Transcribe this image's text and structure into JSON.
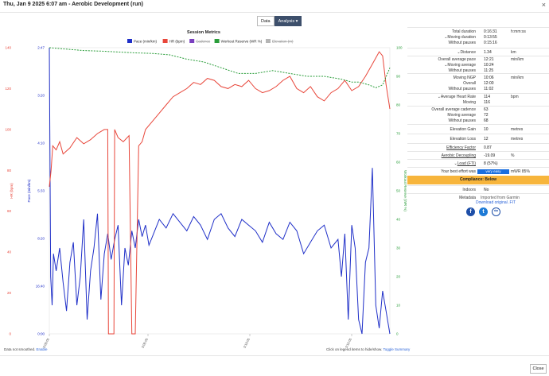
{
  "window": {
    "title": "Thu, Jan 9 2025 6:07 am - Aerobic Development (run)",
    "close_symbol": "×"
  },
  "tabs": [
    {
      "label": "Data"
    },
    {
      "label": "Analysis ▾"
    }
  ],
  "chart_data": {
    "type": "line",
    "title": "Session Metrics",
    "legend": [
      {
        "name": "Pace (min/km)",
        "color": "#1f2fc8",
        "active": true
      },
      {
        "name": "HR (bpm)",
        "color": "#e8463a",
        "active": true
      },
      {
        "name": "Cadence",
        "color": "#7a3fbf",
        "active": false
      },
      {
        "name": "Workout Reserve (WR %)",
        "color": "#2a9d3a",
        "active": true
      },
      {
        "name": "Elevation (m)",
        "color": "#b5b5b5",
        "active": false
      }
    ],
    "x_ticks": [
      "0:00:01",
      "0:05:01",
      "0:10:01",
      "0:15:01"
    ],
    "x_range": [
      0,
      991
    ],
    "left_axis_hr": {
      "label": "HR (bpm)",
      "ticks": [
        "140",
        "120",
        "100",
        "80",
        "60",
        "40",
        "20",
        "0"
      ],
      "range": [
        0,
        140
      ]
    },
    "left_axis_pace": {
      "label": "Pace (min/km)",
      "ticks": [
        "2:47",
        "3:20",
        "4:10",
        "5:33",
        "8:20",
        "16:40",
        "0:00"
      ]
    },
    "right_axis_wr": {
      "label": "Workout Reserve (WR %)",
      "ticks": [
        "100",
        "90",
        "80",
        "70",
        "60",
        "50",
        "40",
        "30",
        "20",
        "10",
        "0"
      ],
      "range": [
        0,
        100
      ]
    },
    "series": [
      {
        "name": "HR (bpm)",
        "x": [
          0,
          5,
          10,
          20,
          30,
          40,
          60,
          80,
          100,
          120,
          140,
          160,
          170,
          172,
          188,
          190,
          200,
          215,
          232,
          240,
          250,
          260,
          270,
          280,
          300,
          320,
          340,
          360,
          380,
          400,
          420,
          440,
          460,
          480,
          500,
          520,
          540,
          560,
          580,
          600,
          620,
          640,
          660,
          680,
          700,
          720,
          740,
          760,
          780,
          800,
          820,
          840,
          860,
          880,
          900,
          920,
          940,
          960,
          970,
          980,
          991
        ],
        "values": [
          72,
          80,
          92,
          90,
          94,
          88,
          91,
          96,
          93,
          95,
          98,
          100,
          100,
          0,
          0,
          100,
          96,
          94,
          97,
          0,
          0,
          92,
          94,
          100,
          104,
          108,
          112,
          116,
          118,
          120,
          123,
          122,
          125,
          124,
          121,
          120,
          122,
          121,
          124,
          120,
          118,
          119,
          121,
          124,
          126,
          120,
          118,
          121,
          116,
          114,
          118,
          120,
          124,
          119,
          121,
          126,
          132,
          138,
          136,
          122,
          110
        ]
      },
      {
        "name": "Workout Reserve (WR %)",
        "x": [
          0,
          50,
          100,
          150,
          200,
          250,
          300,
          350,
          400,
          450,
          500,
          550,
          600,
          650,
          700,
          750,
          800,
          850,
          880,
          900,
          930,
          950,
          970,
          991
        ],
        "values": [
          100,
          99.5,
          99,
          98.8,
          98.5,
          98.2,
          98,
          97.5,
          96,
          95,
          93,
          91,
          91,
          92,
          91,
          90,
          90,
          89,
          88,
          88,
          87,
          86,
          87,
          93
        ]
      },
      {
        "name": "Pace (min/km)",
        "note": "plotted as speed fraction of axis height (0 = stopped, 1 = 2:47 min/km)",
        "x": [
          0,
          4,
          8,
          12,
          20,
          30,
          40,
          50,
          60,
          70,
          80,
          90,
          100,
          110,
          120,
          130,
          140,
          150,
          160,
          170,
          180,
          190,
          200,
          210,
          220,
          230,
          240,
          250,
          260,
          270,
          280,
          290,
          300,
          320,
          340,
          360,
          380,
          400,
          420,
          440,
          460,
          480,
          500,
          520,
          540,
          560,
          580,
          600,
          620,
          640,
          660,
          680,
          700,
          720,
          740,
          760,
          780,
          800,
          820,
          840,
          850,
          860,
          870,
          880,
          890,
          900,
          910,
          920,
          930,
          940,
          950,
          960,
          970,
          980,
          991
        ],
        "values": [
          1.0,
          0.2,
          0.1,
          0.28,
          0.22,
          0.3,
          0.18,
          0.08,
          0.25,
          0.32,
          0.1,
          0.2,
          0.4,
          0.05,
          0.22,
          0.3,
          0.42,
          0.12,
          0.28,
          0.35,
          0.26,
          0.33,
          0.38,
          0.1,
          0.3,
          0.24,
          0.36,
          0.3,
          0.4,
          0.34,
          0.38,
          0.31,
          0.34,
          0.4,
          0.37,
          0.42,
          0.39,
          0.36,
          0.41,
          0.38,
          0.33,
          0.4,
          0.42,
          0.37,
          0.34,
          0.4,
          0.38,
          0.36,
          0.32,
          0.39,
          0.35,
          0.33,
          0.39,
          0.36,
          0.28,
          0.32,
          0.36,
          0.38,
          0.3,
          0.33,
          0.2,
          0.35,
          0.05,
          0.38,
          0.3,
          0.05,
          0.0,
          0.25,
          0.3,
          0.58,
          0.1,
          0.02,
          0.15,
          0.08,
          0.0
        ]
      }
    ]
  },
  "sidebar": {
    "duration": {
      "total_label": "Total duration",
      "total": "0:16:31",
      "unit": "h:mm:ss",
      "moving_label": "Moving duration",
      "moving": "0:13:55",
      "without_label": "Without pauses",
      "without": "0:15:16"
    },
    "distance": {
      "label": "Distance",
      "value": "1.34",
      "unit": "km"
    },
    "pace": {
      "overall_label": "Overall average pace",
      "overall": "12:21",
      "unit": "min/km",
      "moving_label": "Moving average",
      "moving": "10:24",
      "without_label": "Without pauses",
      "without": "11:25"
    },
    "ngp": {
      "moving_label": "Moving NGP",
      "moving": "10:06",
      "unit": "min/km",
      "overall_label": "Overall",
      "overall": "12:00",
      "without_label": "Without pauses",
      "without": "11:02"
    },
    "hr": {
      "label": "Average Heart Rate",
      "value": "114",
      "unit": "bpm",
      "moving_label": "Moving",
      "moving": "116"
    },
    "cadence": {
      "overall_label": "Overall average cadence",
      "overall": "63",
      "moving_label": "Moving average",
      "moving": "72",
      "without_label": "Without pauses",
      "without": "68"
    },
    "elev_gain": {
      "label": "Elevation Gain",
      "value": "10",
      "unit": "metres"
    },
    "elev_loss": {
      "label": "Elevation Loss",
      "value": "12",
      "unit": "metres"
    },
    "efficiency": {
      "label": "Efficiency Factor",
      "value": "0.87"
    },
    "decoupling": {
      "label": "Aerobic Decoupling",
      "value": "-19.09",
      "unit": "%"
    },
    "load": {
      "label": "Load (FTI)",
      "value": "8 (57%)"
    },
    "best_effort": {
      "label": "Your best effort was",
      "value": "very easy",
      "unit": "mWR 85%"
    },
    "compliance": {
      "label": "Compliance: Below"
    },
    "indoors": {
      "label": "Indoors",
      "value": "No"
    },
    "metadata": {
      "label": "Metadata",
      "imported": "Imported from Garmin",
      "download": "Download original .FIT"
    }
  },
  "footer": {
    "left_text": "Data not smoothed.",
    "left_link": "Enable",
    "right_text": "Click on legend items to hide/show.",
    "right_link": "Toggle Summary"
  },
  "buttons": {
    "close": "Close"
  },
  "social": {
    "facebook": "f",
    "twitter": "t",
    "link": "∞"
  }
}
